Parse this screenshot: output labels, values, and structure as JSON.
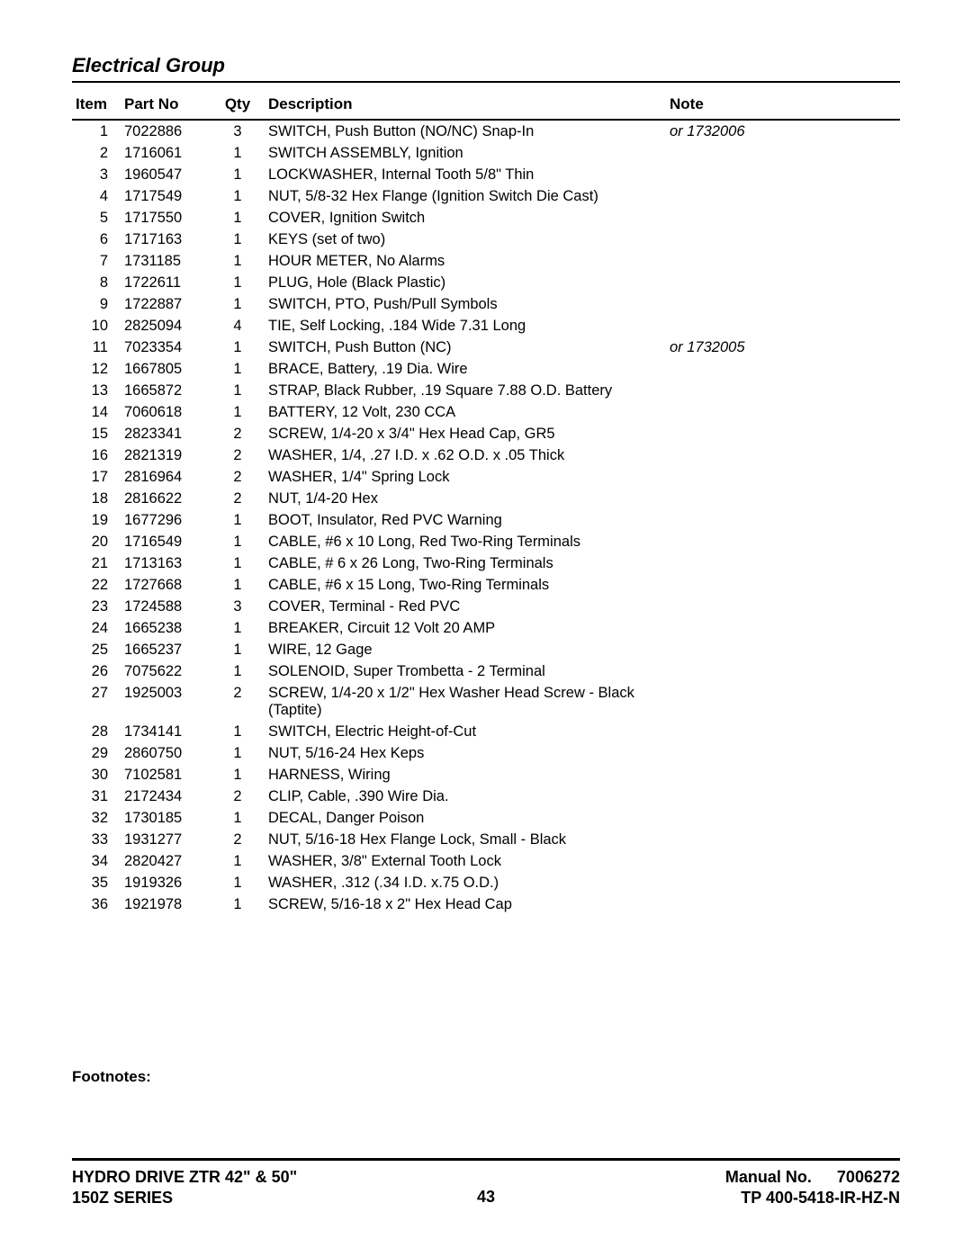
{
  "title": "Electrical Group",
  "columns": {
    "item": "Item",
    "part": "Part No",
    "qty": "Qty",
    "desc": "Description",
    "note": "Note"
  },
  "rows": [
    {
      "item": "1",
      "part": "7022886",
      "qty": "3",
      "desc": "SWITCH, Push Button (NO/NC) Snap-In",
      "note": "or 1732006"
    },
    {
      "item": "2",
      "part": "1716061",
      "qty": "1",
      "desc": "SWITCH ASSEMBLY, Ignition",
      "note": ""
    },
    {
      "item": "3",
      "part": "1960547",
      "qty": "1",
      "desc": "LOCKWASHER, Internal Tooth 5/8\" Thin",
      "note": ""
    },
    {
      "item": "4",
      "part": "1717549",
      "qty": "1",
      "desc": "NUT, 5/8-32 Hex Flange (Ignition Switch Die Cast)",
      "note": ""
    },
    {
      "item": "5",
      "part": "1717550",
      "qty": "1",
      "desc": "COVER, Ignition Switch",
      "note": ""
    },
    {
      "item": "6",
      "part": "1717163",
      "qty": "1",
      "desc": "KEYS (set of two)",
      "note": ""
    },
    {
      "item": "7",
      "part": "1731185",
      "qty": "1",
      "desc": "HOUR METER, No Alarms",
      "note": ""
    },
    {
      "item": "8",
      "part": "1722611",
      "qty": "1",
      "desc": "PLUG, Hole (Black Plastic)",
      "note": ""
    },
    {
      "item": "9",
      "part": "1722887",
      "qty": "1",
      "desc": "SWITCH, PTO, Push/Pull Symbols",
      "note": ""
    },
    {
      "item": "10",
      "part": "2825094",
      "qty": "4",
      "desc": "TIE, Self Locking, .184 Wide 7.31 Long",
      "note": ""
    },
    {
      "item": "11",
      "part": "7023354",
      "qty": "1",
      "desc": "SWITCH, Push Button (NC)",
      "note": "or 1732005"
    },
    {
      "item": "12",
      "part": "1667805",
      "qty": "1",
      "desc": "BRACE, Battery, .19 Dia. Wire",
      "note": ""
    },
    {
      "item": "13",
      "part": "1665872",
      "qty": "1",
      "desc": "STRAP, Black Rubber, .19 Square 7.88 O.D. Battery",
      "note": ""
    },
    {
      "item": "14",
      "part": "7060618",
      "qty": "1",
      "desc": "BATTERY, 12 Volt, 230 CCA",
      "note": ""
    },
    {
      "item": "15",
      "part": "2823341",
      "qty": "2",
      "desc": "SCREW, 1/4-20 x 3/4\" Hex Head Cap, GR5",
      "note": ""
    },
    {
      "item": "16",
      "part": "2821319",
      "qty": "2",
      "desc": "WASHER, 1/4, .27 I.D. x .62 O.D. x .05 Thick",
      "note": ""
    },
    {
      "item": "17",
      "part": "2816964",
      "qty": "2",
      "desc": "WASHER, 1/4\" Spring Lock",
      "note": ""
    },
    {
      "item": "18",
      "part": "2816622",
      "qty": "2",
      "desc": "NUT, 1/4-20 Hex",
      "note": ""
    },
    {
      "item": "19",
      "part": "1677296",
      "qty": "1",
      "desc": "BOOT, Insulator, Red PVC Warning",
      "note": ""
    },
    {
      "item": "20",
      "part": "1716549",
      "qty": "1",
      "desc": "CABLE, #6 x 10 Long, Red Two-Ring Terminals",
      "note": ""
    },
    {
      "item": "21",
      "part": "1713163",
      "qty": "1",
      "desc": "CABLE, # 6 x 26 Long, Two-Ring Terminals",
      "note": ""
    },
    {
      "item": "22",
      "part": "1727668",
      "qty": "1",
      "desc": "CABLE, #6 x 15 Long, Two-Ring Terminals",
      "note": ""
    },
    {
      "item": "23",
      "part": "1724588",
      "qty": "3",
      "desc": "COVER, Terminal - Red PVC",
      "note": ""
    },
    {
      "item": "24",
      "part": "1665238",
      "qty": "1",
      "desc": "BREAKER, Circuit 12 Volt 20 AMP",
      "note": ""
    },
    {
      "item": "25",
      "part": "1665237",
      "qty": "1",
      "desc": "WIRE, 12 Gage",
      "note": ""
    },
    {
      "item": "26",
      "part": "7075622",
      "qty": "1",
      "desc": "SOLENOID, Super Trombetta - 2 Terminal",
      "note": ""
    },
    {
      "item": "27",
      "part": "1925003",
      "qty": "2",
      "desc": "SCREW, 1/4-20 x 1/2\" Hex Washer Head Screw - Black (Taptite)",
      "note": ""
    },
    {
      "item": "28",
      "part": "1734141",
      "qty": "1",
      "desc": "SWITCH, Electric Height-of-Cut",
      "note": ""
    },
    {
      "item": "29",
      "part": "2860750",
      "qty": "1",
      "desc": "NUT, 5/16-24 Hex Keps",
      "note": ""
    },
    {
      "item": "30",
      "part": "7102581",
      "qty": "1",
      "desc": "HARNESS, Wiring",
      "note": ""
    },
    {
      "item": "31",
      "part": "2172434",
      "qty": "2",
      "desc": "CLIP, Cable, .390 Wire Dia.",
      "note": ""
    },
    {
      "item": "32",
      "part": "1730185",
      "qty": "1",
      "desc": "DECAL, Danger Poison",
      "note": ""
    },
    {
      "item": "33",
      "part": "1931277",
      "qty": "2",
      "desc": "NUT, 5/16-18 Hex Flange Lock, Small - Black",
      "note": ""
    },
    {
      "item": "34",
      "part": "2820427",
      "qty": "1",
      "desc": "WASHER, 3/8\" External Tooth Lock",
      "note": ""
    },
    {
      "item": "35",
      "part": "1919326",
      "qty": "1",
      "desc": "WASHER, .312 (.34 I.D. x.75 O.D.)",
      "note": ""
    },
    {
      "item": "36",
      "part": "1921978",
      "qty": "1",
      "desc": "SCREW, 5/16-18 x 2\" Hex Head Cap",
      "note": ""
    }
  ],
  "footnotes_label": "Footnotes:",
  "footer": {
    "left1": "HYDRO DRIVE ZTR 42\" & 50\"",
    "left2": "150Z SERIES",
    "page": "43",
    "manual_label": "Manual No.",
    "manual_no": "7006272",
    "tp": "TP 400-5418-IR-HZ-N"
  }
}
